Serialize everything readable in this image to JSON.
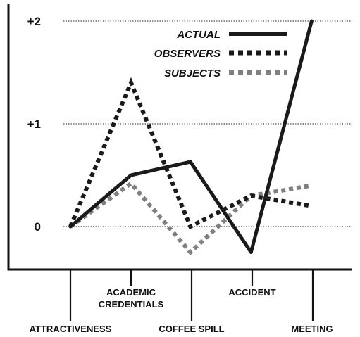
{
  "chart_data": {
    "type": "line",
    "categories": [
      "ATTRACTIVENESS",
      "ACADEMIC CREDENTIALS",
      "COFFEE SPILL",
      "ACCIDENT",
      "MEETING"
    ],
    "y_ticks": [
      "+2",
      "+1",
      "0"
    ],
    "y_tick_values": [
      2,
      1,
      0
    ],
    "ylim": [
      -0.45,
      2.1
    ],
    "grid": "dotted horizontal at ticks",
    "legend_placement": "top-right",
    "series": [
      {
        "name": "ACTUAL",
        "style": "solid",
        "color": "#1a1a1a",
        "x": [
          0,
          1.0,
          1.98,
          2.98,
          3.98
        ],
        "values": [
          0,
          0.5,
          0.63,
          -0.25,
          2.0
        ]
      },
      {
        "name": "OBSERVERS",
        "style": "dotted",
        "color": "#1a1a1a",
        "x": [
          0,
          1.0,
          1.98,
          2.98,
          3.98
        ],
        "values": [
          0,
          1.4,
          0.0,
          0.3,
          0.2
        ]
      },
      {
        "name": "SUBJECTS",
        "style": "dotted",
        "color": "#808080",
        "x": [
          0,
          1.0,
          1.98,
          2.98,
          3.98
        ],
        "values": [
          0,
          0.42,
          -0.25,
          0.3,
          0.4
        ]
      }
    ]
  }
}
